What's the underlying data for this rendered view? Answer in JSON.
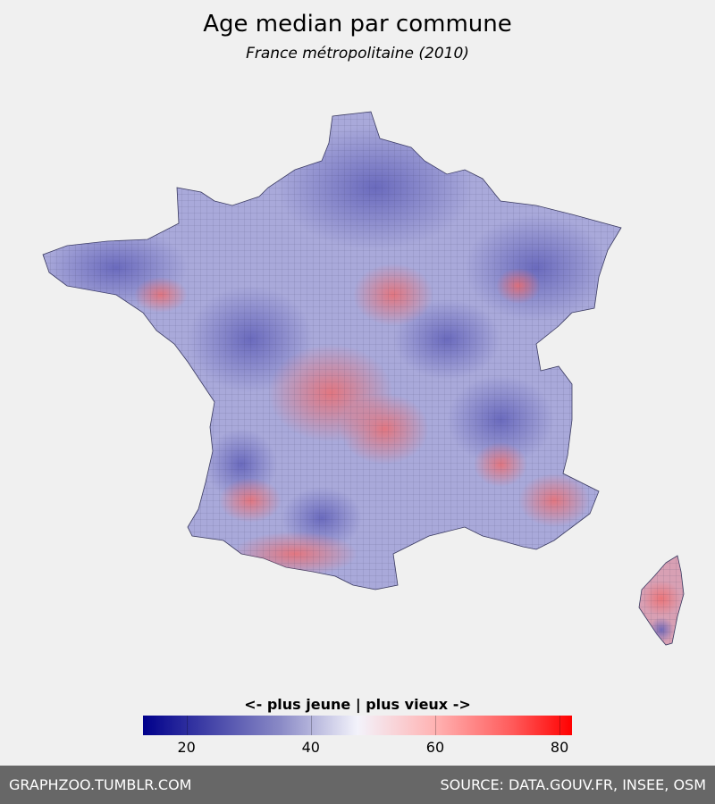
{
  "title": "Age median par commune",
  "subtitle": "France métropolitaine (2010)",
  "legend": {
    "label": "<- plus jeune | plus vieux ->",
    "min": 13,
    "max": 82,
    "ticks": [
      "20",
      "40",
      "60",
      "80"
    ],
    "colors": {
      "low": "#00008b",
      "mid": "#f3f3fb",
      "high": "#ff0000"
    }
  },
  "footer": {
    "left": "GRAPHZOO.TUMBLR.COM",
    "right": "SOURCE: DATA.GOUV.FR, INSEE, OSM"
  },
  "colors": {
    "background": "#f0f0f0",
    "footer": "#676767",
    "young": "#5a5ab4",
    "old": "#f07070"
  }
}
